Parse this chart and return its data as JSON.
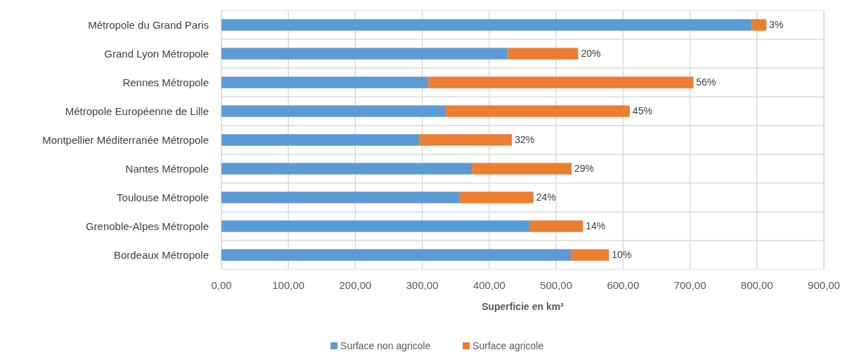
{
  "chart_data": {
    "type": "bar",
    "orientation": "horizontal",
    "stacked": true,
    "xlabel": "Superficie en km²",
    "categories": [
      "Métropole du Grand Paris",
      "Grand Lyon Métropole",
      "Rennes Métropole",
      "Métropole Européenne de Lille",
      "Montpellier Méditerranée Métropole",
      "Nantes Métropole",
      "Toulouse Métropole",
      "Grenoble-Alpes Métropole",
      "Bordeaux Métropole"
    ],
    "series": [
      {
        "name": "Surface non agricole",
        "color": "#5b9bd5",
        "values": [
          792,
          428,
          309,
          335,
          295,
          374,
          355,
          460,
          522
        ]
      },
      {
        "name": "Surface agricole",
        "color": "#ed7d31",
        "values": [
          22,
          105,
          396,
          275,
          139,
          149,
          111,
          80,
          57
        ]
      }
    ],
    "annotations": [
      {
        "text": "3%",
        "x": 814,
        "y": "Métropole du Grand Paris"
      },
      {
        "text": "20%",
        "x": 533,
        "y": "Grand Lyon Métropole"
      },
      {
        "text": "56%",
        "x": 705,
        "y": "Rennes Métropole"
      },
      {
        "text": "45%",
        "x": 610,
        "y": "Métropole Européenne de Lille"
      },
      {
        "text": "32%",
        "x": 434,
        "y": "Montpellier Méditerranée Métropole"
      },
      {
        "text": "29%",
        "x": 523,
        "y": "Nantes Métropole"
      },
      {
        "text": "24%",
        "x": 466,
        "y": "Toulouse Métropole"
      },
      {
        "text": "14%",
        "x": 540,
        "y": "Grenoble-Alpes Métropole"
      },
      {
        "text": "10%",
        "x": 579,
        "y": "Bordeaux Métropole"
      }
    ],
    "xlim": [
      0,
      900
    ],
    "xticks": [
      {
        "value": 0,
        "label": "0,00"
      },
      {
        "value": 100,
        "label": "100,00"
      },
      {
        "value": 200,
        "label": "200,00"
      },
      {
        "value": 300,
        "label": "300,00"
      },
      {
        "value": 400,
        "label": "400,00"
      },
      {
        "value": 500,
        "label": "500,00"
      },
      {
        "value": 600,
        "label": "600,00"
      },
      {
        "value": 700,
        "label": "700,00"
      },
      {
        "value": 800,
        "label": "800,00"
      },
      {
        "value": 900,
        "label": "900,00"
      }
    ],
    "grid": true,
    "legend": "bottom"
  }
}
